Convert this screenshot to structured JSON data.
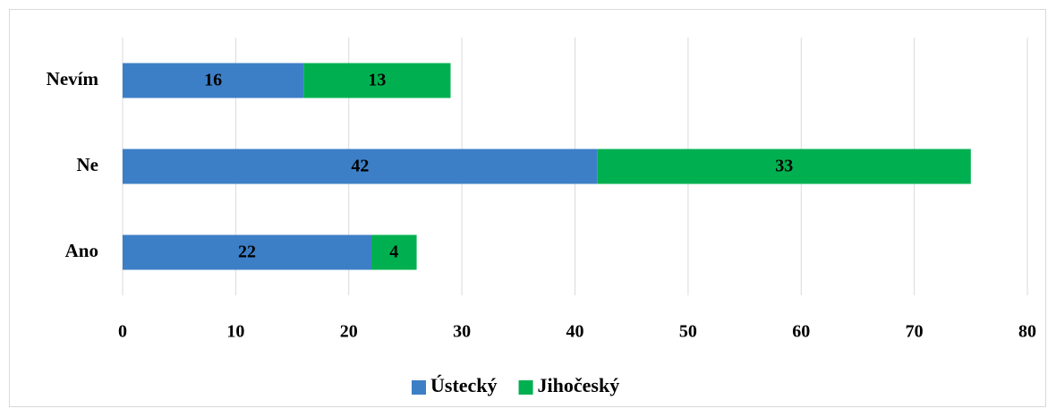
{
  "chart_data": {
    "type": "bar",
    "orientation": "horizontal",
    "stacked": true,
    "categories": [
      "Nevím",
      "Ne",
      "Ano"
    ],
    "series": [
      {
        "name": "Ústecký",
        "color": "#3d7fc6",
        "values": [
          16,
          42,
          22
        ]
      },
      {
        "name": "Jihočeský",
        "color": "#00b050",
        "values": [
          13,
          33,
          4
        ]
      }
    ],
    "xlim": [
      0,
      80
    ],
    "xticks": [
      0,
      10,
      20,
      30,
      40,
      50,
      60,
      70,
      80
    ],
    "grid": true,
    "legend": "bottom"
  }
}
